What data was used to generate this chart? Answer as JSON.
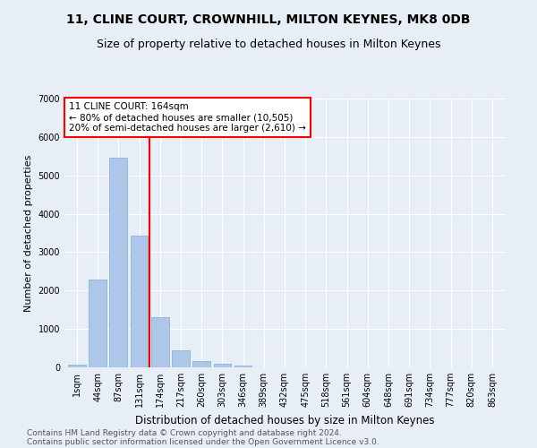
{
  "title1": "11, CLINE COURT, CROWNHILL, MILTON KEYNES, MK8 0DB",
  "title2": "Size of property relative to detached houses in Milton Keynes",
  "xlabel": "Distribution of detached houses by size in Milton Keynes",
  "ylabel": "Number of detached properties",
  "footer1": "Contains HM Land Registry data © Crown copyright and database right 2024.",
  "footer2": "Contains public sector information licensed under the Open Government Licence v3.0.",
  "categories": [
    "1sqm",
    "44sqm",
    "87sqm",
    "131sqm",
    "174sqm",
    "217sqm",
    "260sqm",
    "303sqm",
    "346sqm",
    "389sqm",
    "432sqm",
    "475sqm",
    "518sqm",
    "561sqm",
    "604sqm",
    "648sqm",
    "691sqm",
    "734sqm",
    "777sqm",
    "820sqm",
    "863sqm"
  ],
  "values": [
    80,
    2280,
    5450,
    3430,
    1310,
    440,
    160,
    90,
    55,
    0,
    0,
    0,
    0,
    0,
    0,
    0,
    0,
    0,
    0,
    0,
    0
  ],
  "bar_color": "#aec6e8",
  "bar_edge_color": "#7aaed4",
  "vline_x": 3.5,
  "vline_color": "red",
  "annotation_line1": "11 CLINE COURT: 164sqm",
  "annotation_line2": "← 80% of detached houses are smaller (10,505)",
  "annotation_line3": "20% of semi-detached houses are larger (2,610) →",
  "annotation_box_color": "white",
  "annotation_box_edge_color": "red",
  "ylim": [
    0,
    7000
  ],
  "yticks": [
    0,
    1000,
    2000,
    3000,
    4000,
    5000,
    6000,
    7000
  ],
  "bg_color": "#e8eef6",
  "plot_bg_color": "#e8eef6",
  "grid_color": "white",
  "title1_fontsize": 10,
  "title2_fontsize": 9,
  "xlabel_fontsize": 8.5,
  "ylabel_fontsize": 8,
  "tick_fontsize": 7,
  "footer_fontsize": 6.5,
  "annotation_fontsize": 7.5
}
